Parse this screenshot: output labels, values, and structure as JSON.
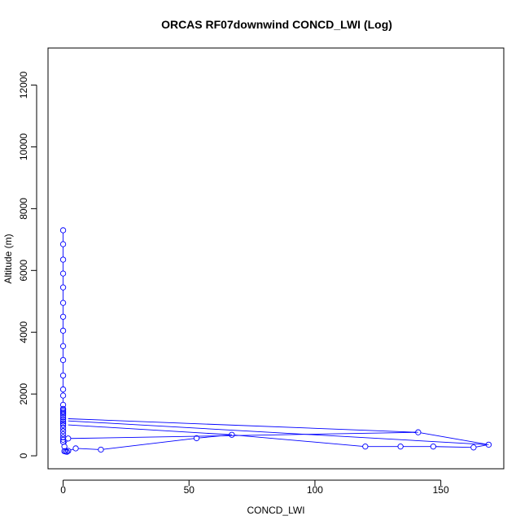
{
  "chart_data": {
    "type": "line",
    "title": "ORCAS RF07downwind CONCD_LWI (Log)",
    "xlabel": "CONCD_LWI",
    "ylabel": "Altitude (m)",
    "xlim": [
      -6,
      175
    ],
    "ylim": [
      -420,
      13200
    ],
    "x_ticks": [
      0,
      50,
      100,
      150
    ],
    "y_ticks": [
      0,
      2000,
      4000,
      6000,
      8000,
      10000,
      12000
    ],
    "series_color": "#0000ff",
    "marker": "open-circle",
    "grid": false,
    "legend": "none",
    "series": [
      {
        "x": [
          0,
          0,
          0,
          0,
          0,
          0,
          0,
          0,
          0,
          0,
          0,
          0,
          0,
          0,
          0,
          0,
          0,
          0,
          0,
          0,
          0,
          0,
          0,
          0,
          0,
          0,
          0,
          0,
          0,
          0,
          0.5,
          2,
          141,
          169,
          163,
          147,
          134,
          120,
          67,
          53,
          15,
          5,
          2,
          0.5,
          1,
          1.5
        ],
        "y": [
          7300,
          6850,
          6350,
          5900,
          5450,
          4950,
          4500,
          4050,
          3550,
          3100,
          2600,
          2150,
          1950,
          1650,
          1520,
          1480,
          1430,
          1380,
          1320,
          1250,
          1180,
          1110,
          1050,
          990,
          900,
          800,
          700,
          600,
          520,
          450,
          300,
          560,
          760,
          360,
          270,
          300,
          300,
          300,
          680,
          570,
          200,
          240,
          160,
          150,
          140,
          130
        ]
      }
    ],
    "extra_segments": [
      {
        "x": [
          2,
          141
        ],
        "y": [
          1200,
          760
        ]
      },
      {
        "x": [
          2,
          169
        ],
        "y": [
          1130,
          360
        ]
      },
      {
        "x": [
          2,
          67
        ],
        "y": [
          1000,
          680
        ]
      }
    ]
  }
}
